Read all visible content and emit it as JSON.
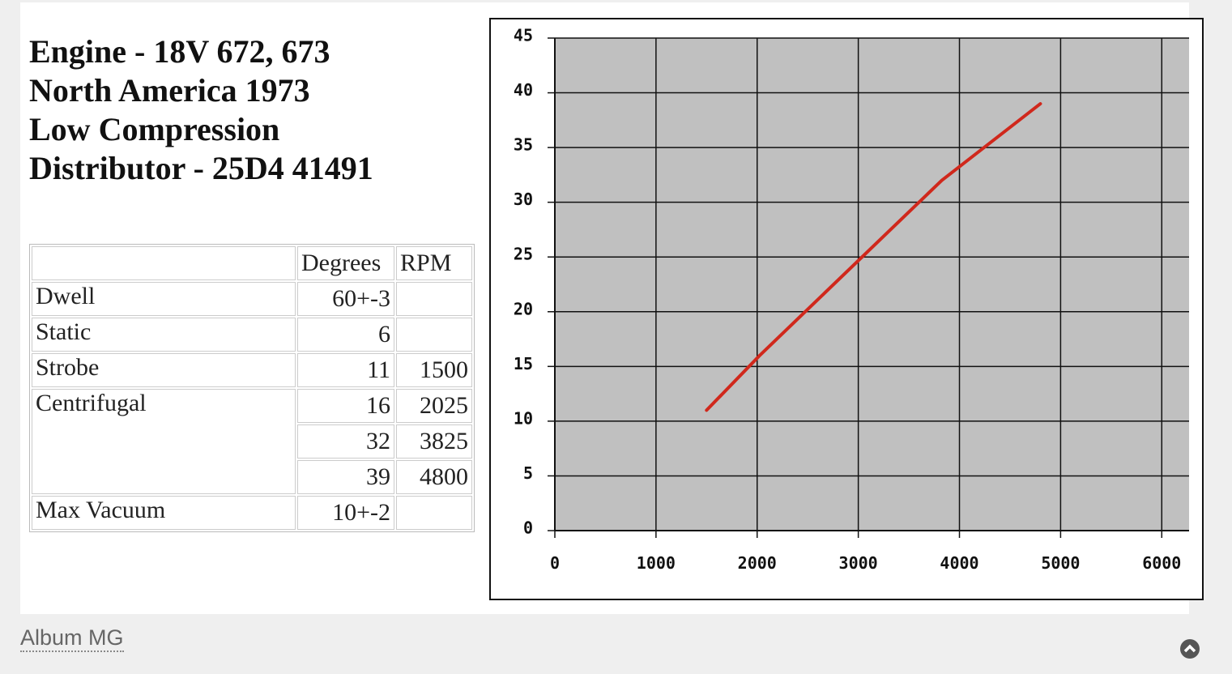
{
  "header": {
    "lines": [
      "Engine - 18V 672, 673",
      "North America 1973",
      "Low Compression",
      "Distributor - 25D4 41491"
    ]
  },
  "table": {
    "columns": [
      "Degrees",
      "RPM"
    ],
    "rows": [
      {
        "label": "Dwell",
        "cells": [
          "60+-3",
          null
        ]
      },
      {
        "label": "Static",
        "cells": [
          6,
          null
        ]
      },
      {
        "label": "Strobe",
        "cells": [
          11,
          1500
        ]
      },
      {
        "label": "Centrifugal",
        "cells": [
          16,
          2025
        ]
      },
      {
        "label": null,
        "cells": [
          32,
          3825
        ]
      },
      {
        "label": null,
        "cells": [
          39,
          4800
        ]
      },
      {
        "label": "Max Vacuum",
        "cells": [
          "10+-2",
          null
        ]
      }
    ]
  },
  "chart_data": {
    "type": "line",
    "x": [
      1500,
      2025,
      3825,
      4800
    ],
    "values": [
      11,
      16,
      32,
      39
    ],
    "color": "#d0281c",
    "xlim": [
      0,
      6270
    ],
    "ylim": [
      0,
      45
    ],
    "xticks": [
      0,
      1000,
      2000,
      3000,
      4000,
      5000,
      6000
    ],
    "yticks": [
      0,
      5,
      10,
      15,
      20,
      25,
      30,
      35,
      40,
      45
    ],
    "grid": true
  },
  "footer": {
    "link": "Album MG"
  }
}
